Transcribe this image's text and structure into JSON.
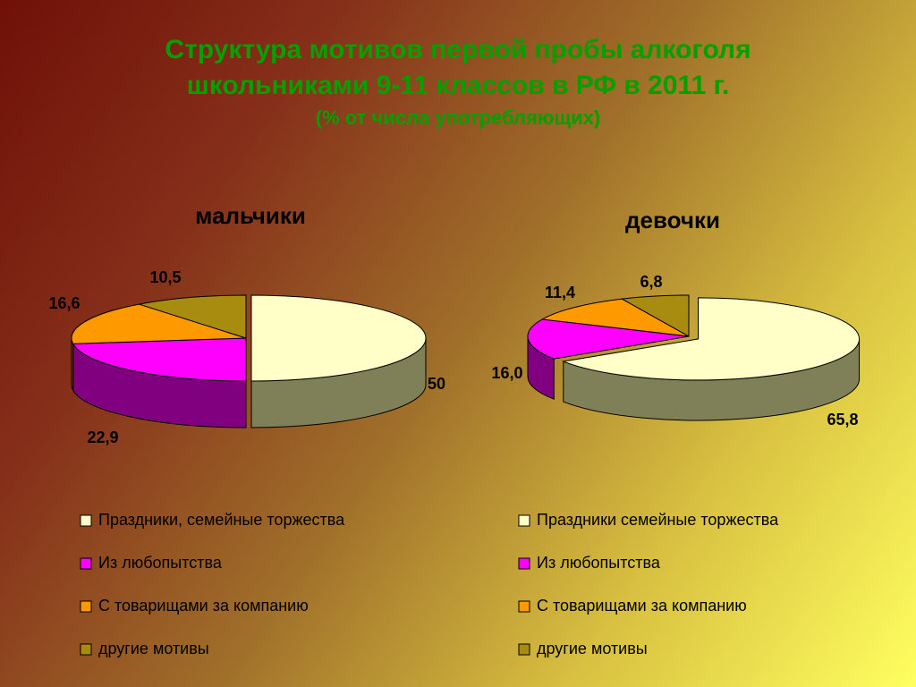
{
  "title": [
    "Структура мотивов первой пробы алкоголя",
    "школьниками 9-11 классов в РФ в 2011 г."
  ],
  "subtitle": "(% от числа употребляющих)",
  "chart_data": [
    {
      "type": "pie3d",
      "title": "мальчики",
      "categories": [
        "Праздники, семейные торжества",
        "Из любопытства",
        "С товарищами за компанию",
        "другие мотивы"
      ],
      "values": [
        50,
        22.9,
        16.6,
        10.5
      ],
      "value_labels": [
        "50",
        "22,9",
        "16,6",
        "10,5"
      ],
      "colors": [
        "#FFFFC8",
        "#FF00FF",
        "#FF9900",
        "#A88C10"
      ],
      "side_colors": [
        "#808058",
        "#800080",
        "#A05000",
        "#685410"
      ]
    },
    {
      "type": "pie3d",
      "title": "девочки",
      "categories": [
        "Праздники семейные торжества",
        "Из любопытства",
        "С товарищами за компанию",
        "другие мотивы"
      ],
      "values": [
        65.8,
        16.0,
        11.4,
        6.8
      ],
      "value_labels": [
        "65,8",
        "16,0",
        "11,4",
        "6,8"
      ],
      "colors": [
        "#FFFFC8",
        "#FF00FF",
        "#FF9900",
        "#A88C10"
      ],
      "side_colors": [
        "#808058",
        "#800080",
        "#A05000",
        "#685410"
      ]
    }
  ]
}
